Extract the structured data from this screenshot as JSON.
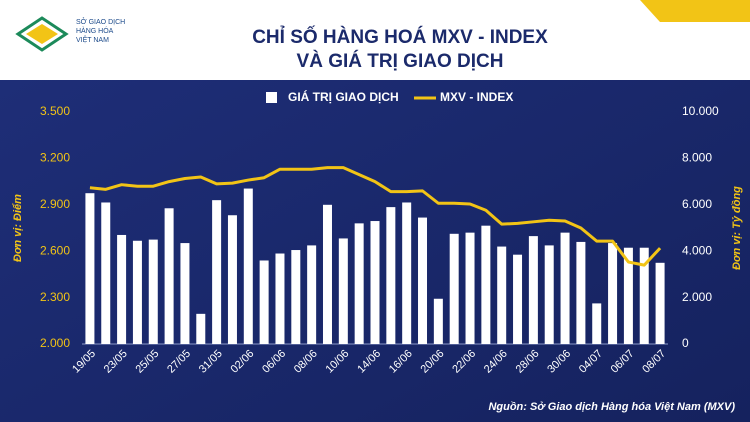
{
  "chart_data": {
    "type": "bar",
    "title": "CHỈ SỐ HÀNG HOÁ MXV - INDEX",
    "subtitle": "VÀ GIÁ TRỊ GIAO DỊCH",
    "logo_text": [
      "SỞ GIAO DỊCH",
      "HÀNG HÓA",
      "VIỆT NAM"
    ],
    "source": "Nguồn: Sở Giao dịch Hàng hóa Việt Nam (MXV)",
    "y_label": "Đơn vị: Điểm",
    "y2_label": "Đơn vị: Tỷ đồng",
    "categories": [
      "19/05",
      null,
      "23/05",
      null,
      "25/05",
      null,
      "27/05",
      null,
      "31/05",
      null,
      "02/06",
      null,
      "06/06",
      null,
      "08/06",
      null,
      "10/06",
      null,
      "14/06",
      null,
      "16/06",
      null,
      "20/06",
      null,
      "22/06",
      null,
      "24/06",
      null,
      "28/06",
      null,
      "30/06",
      null,
      "04/07",
      null,
      "06/07",
      null,
      "08/07"
    ],
    "series": [
      {
        "name": "GIÁ TRỊ GIAO DỊCH",
        "type": "bar",
        "axis": "y2",
        "color": "#ffffff",
        "values": [
          6500,
          6100,
          4700,
          4450,
          4500,
          5850,
          4350,
          1300,
          6200,
          5550,
          6700,
          3600,
          3900,
          4050,
          4250,
          6000,
          4550,
          5200,
          5300,
          5900,
          6100,
          5450,
          1950,
          4750,
          4800,
          5100,
          4200,
          3850,
          4650,
          4250,
          4800,
          4400,
          1750,
          4350,
          4150,
          4150,
          3500
        ]
      },
      {
        "name": "MXV - INDEX",
        "type": "line",
        "color": "#f2c416",
        "values": [
          3010,
          3000,
          3030,
          3020,
          3020,
          3050,
          3070,
          3080,
          3035,
          3040,
          3060,
          3075,
          3130,
          3130,
          3130,
          3140,
          3140,
          3095,
          3050,
          2985,
          2985,
          2990,
          2910,
          2910,
          2905,
          2865,
          2775,
          2780,
          2790,
          2800,
          2795,
          2750,
          2665,
          2665,
          2530,
          2510,
          2620
        ]
      }
    ],
    "ylim": [
      2000,
      3500
    ],
    "yticks": [
      {
        "value": 2000,
        "label": "2.000"
      },
      {
        "value": 2300,
        "label": "2.300"
      },
      {
        "value": 2600,
        "label": "2.600"
      },
      {
        "value": 2900,
        "label": "2.900"
      },
      {
        "value": 3200,
        "label": "3.200"
      },
      {
        "value": 3500,
        "label": "3.500"
      }
    ],
    "y2lim": [
      0,
      10000
    ],
    "y2ticks": [
      0,
      {
        "value": 2000,
        "label": "2.000"
      },
      {
        "value": 4000,
        "label": "4.000"
      },
      {
        "value": 6000,
        "label": "6.000"
      },
      {
        "value": 8000,
        "label": "8.000"
      },
      {
        "value": 10000,
        "label": "10.000"
      }
    ],
    "grid": false,
    "legend": "top"
  }
}
